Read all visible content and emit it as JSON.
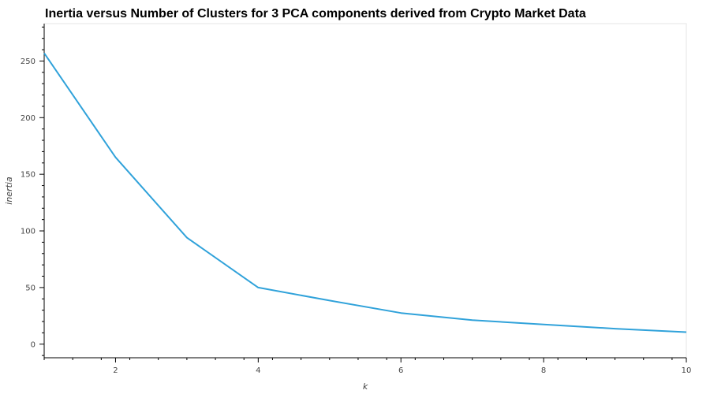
{
  "chart_data": {
    "type": "line",
    "title": "Inertia versus Number of Clusters for 3 PCA components derived from Crypto Market Data",
    "xlabel": "k",
    "ylabel": "inertia",
    "x": [
      1,
      2,
      3,
      4,
      5,
      6,
      7,
      8,
      9,
      10
    ],
    "series": [
      {
        "values": [
          257,
          165,
          94,
          50,
          38.5,
          27.5,
          21.2,
          17.4,
          13.7,
          10.6
        ],
        "color": "#30a2da"
      }
    ],
    "xlim": [
      1,
      10
    ],
    "ylim": [
      -12,
      283
    ],
    "xticks": [
      2,
      4,
      6,
      8,
      10
    ],
    "yticks": [
      0,
      50,
      100,
      150,
      200,
      250
    ],
    "grid": false,
    "legend": "none"
  }
}
